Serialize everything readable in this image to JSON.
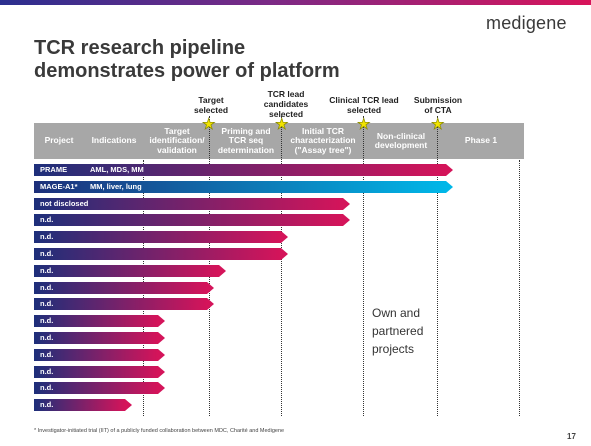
{
  "brand": {
    "logo": "medigene"
  },
  "title": {
    "line1": "TCR research pipeline",
    "line2": "demonstrates power of platform"
  },
  "milestones": [
    {
      "line1": "Target",
      "line2": "selected",
      "line3": ""
    },
    {
      "line1": "TCR lead",
      "line2": "candidates",
      "line3": "selected"
    },
    {
      "line1": "Clinical TCR lead",
      "line2": "selected",
      "line3": ""
    },
    {
      "line1": "Submission",
      "line2": "of CTA",
      "line3": ""
    }
  ],
  "header": [
    {
      "line1": "Project",
      "line2": "",
      "line3": ""
    },
    {
      "line1": "Indications",
      "line2": "",
      "line3": ""
    },
    {
      "line1": "Target",
      "line2": "identification/",
      "line3": "validation"
    },
    {
      "line1": "Priming and",
      "line2": "TCR seq",
      "line3": "determination"
    },
    {
      "line1": "Initial TCR",
      "line2": "characterization",
      "line3": "(\"Assay tree\")"
    },
    {
      "line1": "Non-clinical",
      "line2": "development",
      "line3": ""
    },
    {
      "line1": "Phase 1",
      "line2": "",
      "line3": ""
    }
  ],
  "projects": [
    {
      "label": "PRAME",
      "indication": "AML, MDS, MM",
      "progress": 1.0,
      "color": "#d4145a"
    },
    {
      "label": "MAGE-A1*",
      "indication": "MM, liver, lung",
      "progress": 1.0,
      "color": "#00b7e8"
    },
    {
      "label": "not disclosed",
      "indication": "",
      "progress": 0.75,
      "color": "#d4145a"
    },
    {
      "label": "n.d.",
      "indication": "",
      "progress": 0.75,
      "color": "#d4145a"
    },
    {
      "label": "n.d.",
      "indication": "",
      "progress": 0.6,
      "color": "#d4145a"
    },
    {
      "label": "n.d.",
      "indication": "",
      "progress": 0.6,
      "color": "#d4145a"
    },
    {
      "label": "n.d.",
      "indication": "",
      "progress": 0.45,
      "color": "#d4145a"
    },
    {
      "label": "n.d.",
      "indication": "",
      "progress": 0.42,
      "color": "#d4145a"
    },
    {
      "label": "n.d.",
      "indication": "",
      "progress": 0.42,
      "color": "#d4145a"
    },
    {
      "label": "n.d.",
      "indication": "",
      "progress": 0.3,
      "color": "#d4145a"
    },
    {
      "label": "n.d.",
      "indication": "",
      "progress": 0.3,
      "color": "#d4145a"
    },
    {
      "label": "n.d.",
      "indication": "",
      "progress": 0.3,
      "color": "#d4145a"
    },
    {
      "label": "n.d.",
      "indication": "",
      "progress": 0.3,
      "color": "#d4145a"
    },
    {
      "label": "n.d.",
      "indication": "",
      "progress": 0.3,
      "color": "#d4145a"
    },
    {
      "label": "n.d.",
      "indication": "",
      "progress": 0.22,
      "color": "#d4145a"
    }
  ],
  "note": {
    "line1": "Own and",
    "line2": "partnered",
    "line3": "projects"
  },
  "footnote": "* Investigator-initiated trial (IIT) of a publicly funded collaboration between MDC, Charité and Medigene",
  "page_number": "17",
  "icons": {
    "milestone": "star-icon"
  }
}
